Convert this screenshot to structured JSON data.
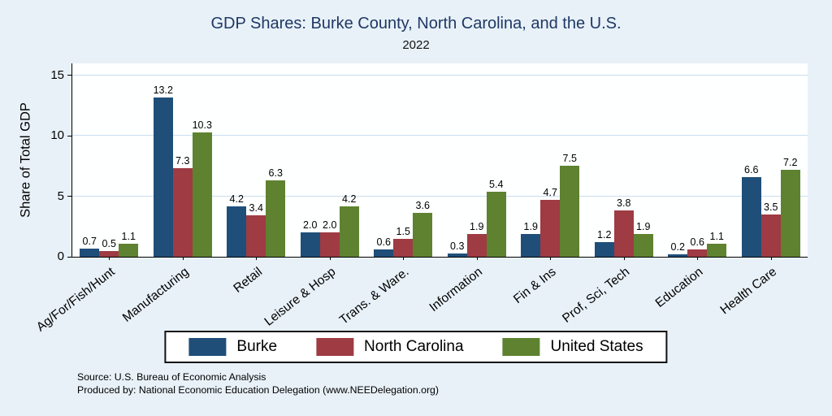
{
  "chart_data": {
    "type": "bar",
    "title": "GDP Shares: Burke County, North Carolina, and the U.S.",
    "subtitle": "2022",
    "ylabel": "Share of Total GDP",
    "categories": [
      "Ag/For/Fish/Hunt",
      "Manufacturing",
      "Retail",
      "Leisure & Hosp",
      "Trans. & Ware.",
      "Information",
      "Fin & Ins",
      "Prof, Sci, Tech",
      "Education",
      "Health Care"
    ],
    "series": [
      {
        "name": "Burke",
        "color": "#1f4e79",
        "values": [
          0.7,
          13.2,
          4.2,
          2.0,
          0.6,
          0.3,
          1.9,
          1.2,
          0.2,
          6.6
        ]
      },
      {
        "name": "North Carolina",
        "color": "#9e3b43",
        "values": [
          0.5,
          7.3,
          3.4,
          2.0,
          1.5,
          1.9,
          4.7,
          3.8,
          0.6,
          3.5
        ]
      },
      {
        "name": "United States",
        "color": "#5e8230",
        "values": [
          1.1,
          10.3,
          6.3,
          4.2,
          3.6,
          5.4,
          7.5,
          1.9,
          1.1,
          7.2
        ]
      }
    ],
    "ylim": [
      0,
      16
    ],
    "yticks": [
      0,
      5,
      10,
      15
    ],
    "grid": true,
    "legend_position": "bottom"
  },
  "notes": {
    "line1": "Source: U.S. Bureau of Economic Analysis",
    "line2": "Produced by: National Economic Education Delegation (www.NEEDelegation.org)"
  },
  "colors": {
    "background": "#e8f1f8",
    "plot_background": "#feffff",
    "gridline": "#cadeee",
    "axis": "#000000",
    "title_text": "#1f3864"
  }
}
